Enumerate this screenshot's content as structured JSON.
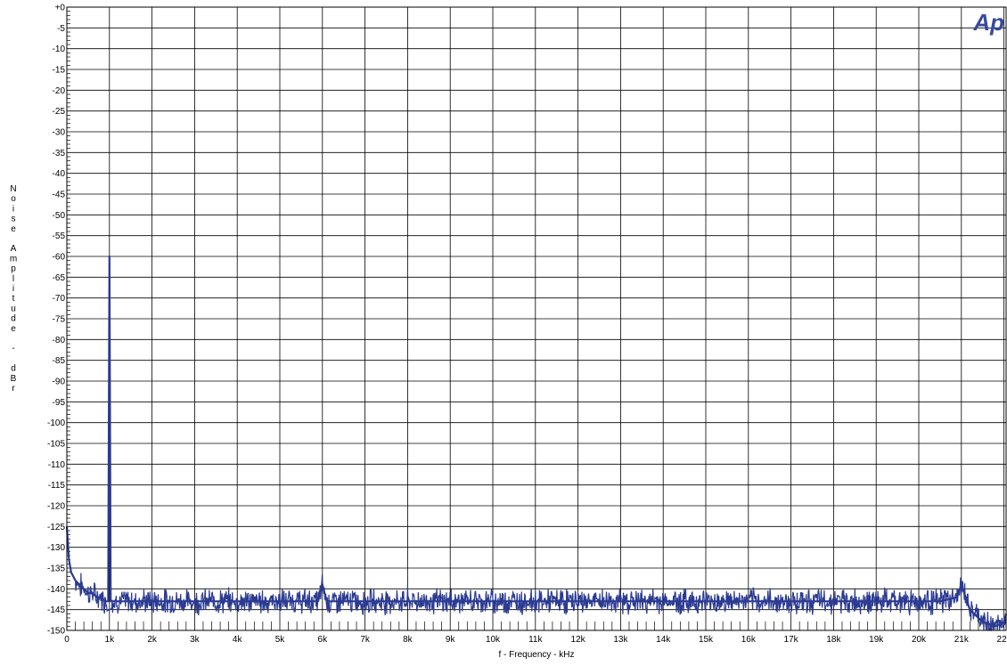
{
  "chart_data": {
    "type": "line",
    "title": "",
    "xlabel": "f - Frequency - kHz",
    "ylabel": "Noise Amplitude - dBr",
    "xlim": [
      0,
      22.05
    ],
    "ylim": [
      -150,
      0
    ],
    "x_ticks": [
      0,
      1,
      2,
      3,
      4,
      5,
      6,
      7,
      8,
      9,
      10,
      11,
      12,
      13,
      14,
      15,
      16,
      17,
      18,
      19,
      20,
      21,
      22
    ],
    "x_tick_labels": [
      "0",
      "1k",
      "2k",
      "3k",
      "4k",
      "5k",
      "6k",
      "7k",
      "8k",
      "9k",
      "10k",
      "11k",
      "12k",
      "13k",
      "14k",
      "15k",
      "16k",
      "17k",
      "18k",
      "19k",
      "20k",
      "21k",
      "22k"
    ],
    "y_ticks": [
      0,
      -5,
      -10,
      -15,
      -20,
      -25,
      -30,
      -35,
      -40,
      -45,
      -50,
      -55,
      -60,
      -65,
      -70,
      -75,
      -80,
      -85,
      -90,
      -95,
      -100,
      -105,
      -110,
      -115,
      -120,
      -125,
      -130,
      -135,
      -140,
      -145,
      -150
    ],
    "y_tick_labels": [
      "+0",
      "-5",
      "-10",
      "-15",
      "-20",
      "-25",
      "-30",
      "-35",
      "-40",
      "-45",
      "-50",
      "-55",
      "-60",
      "-65",
      "-70",
      "-75",
      "-80",
      "-85",
      "-90",
      "-95",
      "-100",
      "-105",
      "-110",
      "-115",
      "-120",
      "-125",
      "-130",
      "-135",
      "-140",
      "-145",
      "-150"
    ],
    "grid": true,
    "series": [
      {
        "color": "#2b3a92",
        "x": [
          0,
          0.05,
          0.1,
          0.15,
          0.2,
          0.3,
          0.4,
          0.5,
          0.6,
          0.7,
          0.8,
          0.9,
          0.97,
          1.0,
          1.03,
          1.1,
          1.3,
          1.5,
          1.8,
          2.0,
          2.5,
          3.0,
          3.5,
          4.0,
          4.5,
          5.0,
          5.5,
          5.9,
          6.0,
          6.1,
          6.5,
          7.0,
          7.5,
          8.0,
          8.5,
          9.0,
          9.5,
          10.0,
          10.5,
          11.0,
          11.5,
          12.0,
          12.5,
          13.0,
          13.5,
          14.0,
          14.5,
          15.0,
          15.5,
          16.0,
          16.5,
          17.0,
          17.5,
          18.0,
          18.5,
          19.0,
          19.5,
          20.0,
          20.5,
          20.9,
          21.0,
          21.2,
          21.5,
          21.8,
          22.0,
          22.05
        ],
        "y": [
          -125,
          -133,
          -136,
          -137,
          -138,
          -139,
          -140,
          -141,
          -141,
          -142,
          -142,
          -143,
          -143,
          -60,
          -143,
          -143,
          -143,
          -143,
          -143,
          -143,
          -143,
          -143,
          -143,
          -143,
          -143,
          -143,
          -143,
          -143,
          -139,
          -143,
          -143,
          -143,
          -143,
          -143,
          -143,
          -143,
          -143,
          -143,
          -143,
          -143,
          -143,
          -143,
          -143,
          -143,
          -143,
          -143,
          -143,
          -143,
          -143,
          -143,
          -143,
          -143,
          -143,
          -143,
          -143,
          -143,
          -143,
          -143,
          -143,
          -142,
          -139,
          -145,
          -148,
          -149,
          -148,
          -146
        ]
      }
    ]
  },
  "logo_text": "Ap"
}
